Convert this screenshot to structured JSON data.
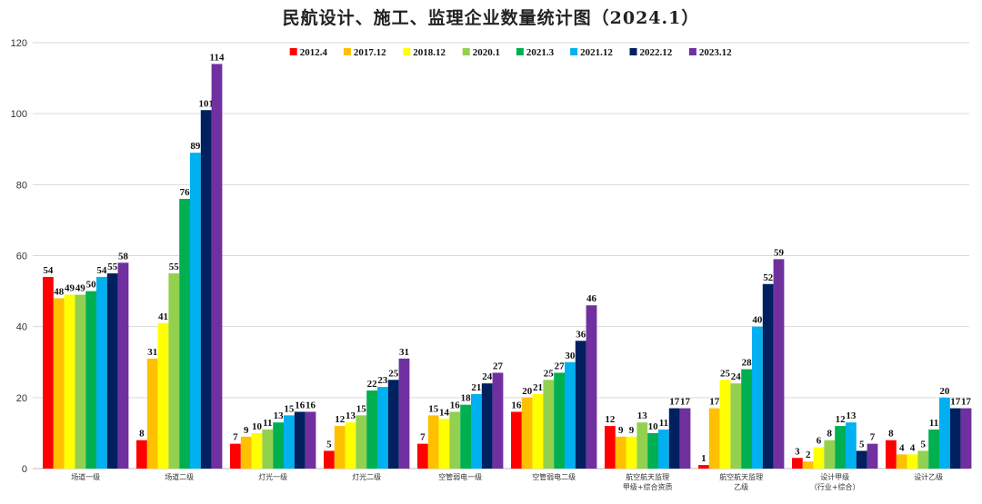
{
  "chart_data": {
    "type": "bar",
    "title": "民航设计、施工、监理企业数量统计图（2024.1）",
    "ylim": [
      0,
      120
    ],
    "yticks": [
      0,
      20,
      40,
      60,
      80,
      100,
      120
    ],
    "grid": true,
    "legend_position": "top",
    "categories": [
      [
        "场道一级"
      ],
      [
        "场道二级"
      ],
      [
        "灯光一级"
      ],
      [
        "灯光二级"
      ],
      [
        "空管弱电一级"
      ],
      [
        "空管弱电二级"
      ],
      [
        "航空航天监理",
        "甲级+综合资质"
      ],
      [
        "航空航天监理",
        "乙级"
      ],
      [
        "设计甲级",
        "（行业+综合）"
      ],
      [
        "设计乙级"
      ]
    ],
    "series": [
      {
        "name": "2012.4",
        "color": "#ff0000",
        "values": [
          54,
          8,
          7,
          5,
          7,
          16,
          12,
          1,
          3,
          8
        ]
      },
      {
        "name": "2017.12",
        "color": "#ffc000",
        "values": [
          48,
          31,
          9,
          12,
          15,
          20,
          9,
          17,
          2,
          4
        ]
      },
      {
        "name": "2018.12",
        "color": "#ffff00",
        "values": [
          49,
          41,
          10,
          13,
          14,
          21,
          9,
          25,
          6,
          4
        ]
      },
      {
        "name": "2020.1",
        "color": "#92d050",
        "values": [
          49,
          55,
          11,
          15,
          16,
          25,
          13,
          24,
          8,
          5
        ]
      },
      {
        "name": "2021.3",
        "color": "#00b050",
        "values": [
          50,
          76,
          13,
          22,
          18,
          27,
          10,
          28,
          12,
          11
        ]
      },
      {
        "name": "2021.12",
        "color": "#00b0f0",
        "values": [
          54,
          89,
          15,
          23,
          21,
          30,
          11,
          40,
          13,
          20
        ]
      },
      {
        "name": "2022.12",
        "color": "#002060",
        "values": [
          55,
          101,
          16,
          25,
          24,
          36,
          17,
          52,
          5,
          17
        ]
      },
      {
        "name": "2023.12",
        "color": "#7030a0",
        "values": [
          58,
          114,
          16,
          31,
          27,
          46,
          17,
          59,
          7,
          17
        ]
      }
    ]
  }
}
